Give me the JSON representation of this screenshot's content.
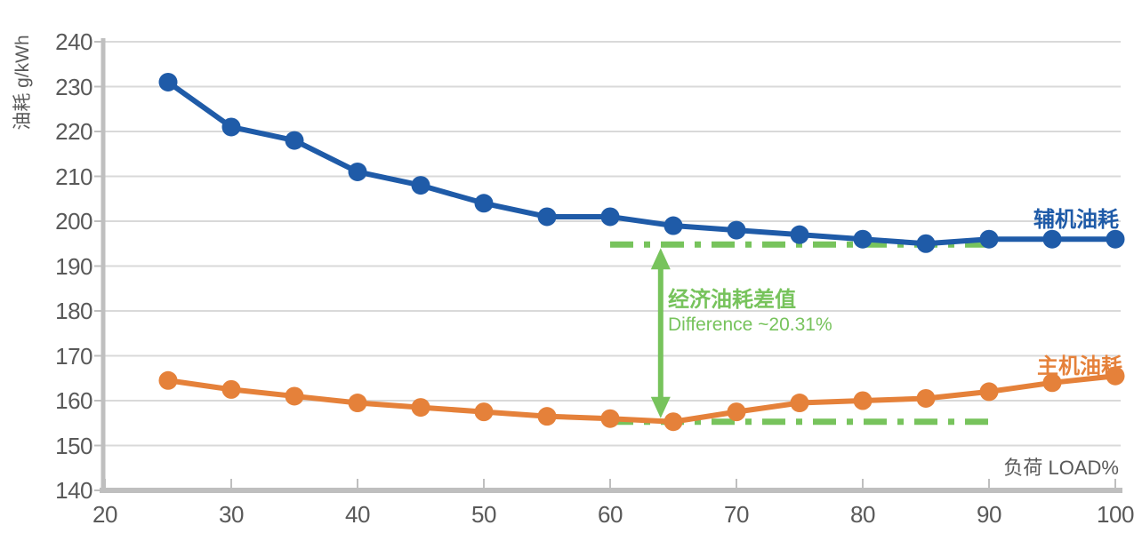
{
  "chart_data": {
    "type": "line",
    "title": "",
    "xlabel": "负荷 LOAD%",
    "ylabel": "油耗 g/kWh",
    "x": [
      25,
      30,
      35,
      40,
      45,
      50,
      55,
      60,
      65,
      70,
      75,
      80,
      85,
      90,
      95,
      100
    ],
    "x_ticks": [
      20,
      30,
      40,
      50,
      60,
      70,
      80,
      90,
      100
    ],
    "y_ticks": [
      140,
      150,
      160,
      170,
      180,
      190,
      200,
      210,
      220,
      230,
      240
    ],
    "xlim": [
      20,
      100
    ],
    "ylim": [
      140,
      240
    ],
    "grid": true,
    "legend_position": "inline-end-of-line",
    "series": [
      {
        "name": "辅机油耗",
        "color": "#1F5BA8",
        "values": [
          231,
          221,
          218,
          211,
          208,
          204,
          201,
          201,
          199,
          198,
          197,
          196,
          195,
          196,
          196,
          196
        ]
      },
      {
        "name": "主机油耗",
        "color": "#E5813A",
        "values": [
          164.5,
          162.5,
          161,
          159.5,
          158.5,
          157.5,
          156.5,
          156,
          155.3,
          157.5,
          159.5,
          160,
          160.5,
          162,
          164,
          165.5
        ]
      }
    ],
    "annotation": {
      "label_cn": "经济油耗差值",
      "label_en": "Difference ~20.31%",
      "color": "#77C35C",
      "upper_dash_value": 194.8,
      "lower_dash_value": 155.3,
      "dash_x_range": [
        60,
        90
      ],
      "arrow_x": 64
    },
    "colors": {
      "grid_line": "#D9D9D9",
      "axis_line": "#BFBFBF",
      "tick_text": "#595959"
    }
  }
}
